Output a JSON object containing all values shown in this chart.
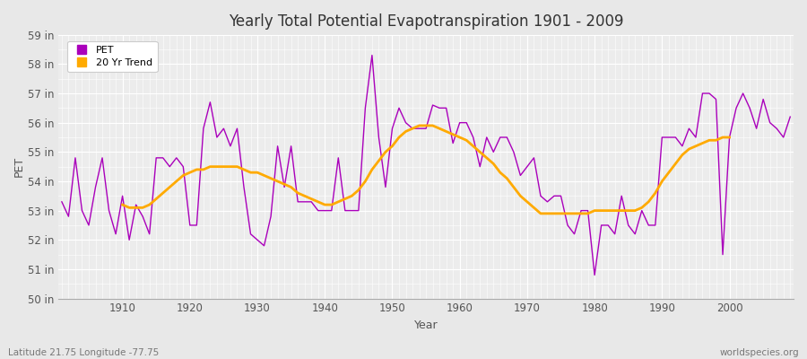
{
  "title": "Yearly Total Potential Evapotranspiration 1901 - 2009",
  "xlabel": "Year",
  "ylabel": "PET",
  "subtitle_left": "Latitude 21.75 Longitude -77.75",
  "subtitle_right": "worldspecies.org",
  "pet_color": "#aa00bb",
  "trend_color": "#ffaa00",
  "fig_bg_color": "#e8e8e8",
  "plot_bg_color": "#ececec",
  "ylim": [
    50,
    59
  ],
  "yticks": [
    50,
    51,
    52,
    53,
    54,
    55,
    56,
    57,
    58,
    59
  ],
  "ytick_labels": [
    "50 in",
    "51 in",
    "52 in",
    "53 in",
    "54 in",
    "55 in",
    "56 in",
    "57 in",
    "58 in",
    "59 in"
  ],
  "xticks": [
    1910,
    1920,
    1930,
    1940,
    1950,
    1960,
    1970,
    1980,
    1990,
    2000
  ],
  "years": [
    1901,
    1902,
    1903,
    1904,
    1905,
    1906,
    1907,
    1908,
    1909,
    1910,
    1911,
    1912,
    1913,
    1914,
    1915,
    1916,
    1917,
    1918,
    1919,
    1920,
    1921,
    1922,
    1923,
    1924,
    1925,
    1926,
    1927,
    1928,
    1929,
    1930,
    1931,
    1932,
    1933,
    1934,
    1935,
    1936,
    1937,
    1938,
    1939,
    1940,
    1941,
    1942,
    1943,
    1944,
    1945,
    1946,
    1947,
    1948,
    1949,
    1950,
    1951,
    1952,
    1953,
    1954,
    1955,
    1956,
    1957,
    1958,
    1959,
    1960,
    1961,
    1962,
    1963,
    1964,
    1965,
    1966,
    1967,
    1968,
    1969,
    1970,
    1971,
    1972,
    1973,
    1974,
    1975,
    1976,
    1977,
    1978,
    1979,
    1980,
    1981,
    1982,
    1983,
    1984,
    1985,
    1986,
    1987,
    1988,
    1989,
    1990,
    1991,
    1992,
    1993,
    1994,
    1995,
    1996,
    1997,
    1998,
    1999,
    2000,
    2001,
    2002,
    2003,
    2004,
    2005,
    2006,
    2007,
    2008,
    2009
  ],
  "pet_values": [
    53.3,
    52.8,
    54.8,
    53.0,
    52.5,
    53.8,
    54.8,
    53.0,
    52.2,
    53.5,
    52.0,
    53.2,
    52.8,
    52.2,
    54.8,
    54.8,
    54.5,
    54.8,
    54.5,
    52.5,
    52.5,
    55.8,
    56.7,
    55.5,
    55.8,
    55.2,
    55.8,
    53.8,
    52.2,
    52.0,
    51.8,
    52.8,
    55.2,
    53.8,
    55.2,
    53.3,
    53.3,
    53.3,
    53.0,
    53.0,
    53.0,
    54.8,
    53.0,
    53.0,
    53.0,
    56.5,
    58.3,
    55.5,
    53.8,
    55.8,
    56.5,
    56.0,
    55.8,
    55.8,
    55.8,
    56.6,
    56.5,
    56.5,
    55.3,
    56.0,
    56.0,
    55.5,
    54.5,
    55.5,
    55.0,
    55.5,
    55.5,
    55.0,
    54.2,
    54.5,
    54.8,
    53.5,
    53.3,
    53.5,
    53.5,
    52.5,
    52.2,
    53.0,
    53.0,
    50.8,
    52.5,
    52.5,
    52.2,
    53.5,
    52.5,
    52.2,
    53.0,
    52.5,
    52.5,
    55.5,
    55.5,
    55.5,
    55.2,
    55.8,
    55.5,
    57.0,
    57.0,
    56.8,
    51.5,
    55.5,
    56.5,
    57.0,
    56.5,
    55.8,
    56.8,
    56.0,
    55.8,
    55.5,
    56.2
  ],
  "trend_values": [
    null,
    null,
    null,
    null,
    null,
    null,
    null,
    null,
    null,
    53.2,
    53.1,
    53.1,
    53.1,
    53.2,
    53.4,
    53.6,
    53.8,
    54.0,
    54.2,
    54.3,
    54.4,
    54.4,
    54.5,
    54.5,
    54.5,
    54.5,
    54.5,
    54.4,
    54.3,
    54.3,
    54.2,
    54.1,
    54.0,
    53.9,
    53.8,
    53.6,
    53.5,
    53.4,
    53.3,
    53.2,
    53.2,
    53.3,
    53.4,
    53.5,
    53.7,
    54.0,
    54.4,
    54.7,
    55.0,
    55.2,
    55.5,
    55.7,
    55.8,
    55.9,
    55.9,
    55.9,
    55.8,
    55.7,
    55.6,
    55.5,
    55.4,
    55.2,
    55.0,
    54.8,
    54.6,
    54.3,
    54.1,
    53.8,
    53.5,
    53.3,
    53.1,
    52.9,
    52.9,
    52.9,
    52.9,
    52.9,
    52.9,
    52.9,
    52.9,
    53.0,
    53.0,
    53.0,
    53.0,
    53.0,
    53.0,
    53.0,
    53.1,
    53.3,
    53.6,
    54.0,
    54.3,
    54.6,
    54.9,
    55.1,
    55.2,
    55.3,
    55.4,
    55.4,
    55.5,
    55.5,
    null,
    null,
    null,
    null,
    null,
    null,
    null,
    null,
    null
  ]
}
